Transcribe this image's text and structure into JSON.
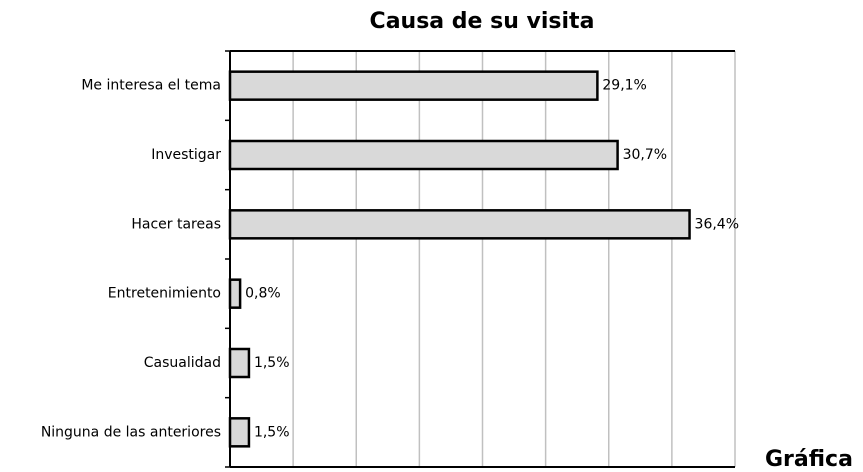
{
  "chart_data": {
    "type": "barh",
    "title": "Causa de su visita",
    "categories": [
      "Me interesa el tema",
      "Investigar",
      "Hacer tareas",
      "Entretenimiento",
      "Casualidad",
      "Ninguna de las anteriores"
    ],
    "values": [
      29.1,
      30.7,
      36.4,
      0.8,
      1.5,
      1.5
    ],
    "value_labels": [
      "29,1%",
      "30,7%",
      "36,4%",
      "0,8%",
      "1,5%",
      "1,5%"
    ],
    "color": "#d9d9d9",
    "xlim": [
      0,
      40
    ],
    "xticks": [
      0,
      5,
      10,
      15,
      20,
      25,
      30,
      35,
      40
    ],
    "grid": true,
    "annotation": "Gráfica"
  }
}
